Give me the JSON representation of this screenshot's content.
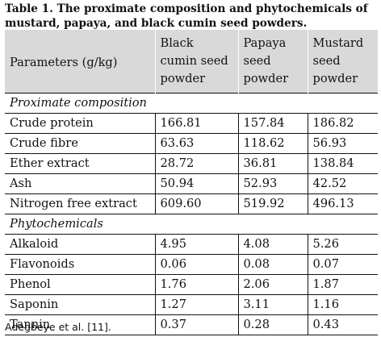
{
  "caption": "Table 1. The proximate composition and phytochemicals of mustard, papaya, and black cumin seed powders.",
  "table": {
    "headers": [
      "Parameters (g/kg)",
      "Black cumin seed powder",
      "Papaya seed powder",
      "Mustard seed powder"
    ],
    "sections": [
      {
        "title": "Proximate composition",
        "rows": [
          [
            "Crude protein",
            "166.81",
            "157.84",
            "186.82"
          ],
          [
            "Crude fibre",
            "63.63",
            "118.62",
            "56.93"
          ],
          [
            "Ether extract",
            "28.72",
            "36.81",
            "138.84"
          ],
          [
            "Ash",
            "50.94",
            "52.93",
            "42.52"
          ],
          [
            "Nitrogen free extract",
            "609.60",
            "519.92",
            "496.13"
          ]
        ]
      },
      {
        "title": "Phytochemicals",
        "rows": [
          [
            "Alkaloid",
            "4.95",
            "4.08",
            "5.26"
          ],
          [
            "Flavonoids",
            "0.06",
            "0.08",
            "0.07"
          ],
          [
            "Phenol",
            "1.76",
            "2.06",
            "1.87"
          ],
          [
            "Saponin",
            "1.27",
            "3.11",
            "1.16"
          ],
          [
            "Tannin",
            "0.37",
            "0.28",
            "0.43"
          ]
        ]
      }
    ]
  },
  "footer": "Adegbeye et al. [11]."
}
